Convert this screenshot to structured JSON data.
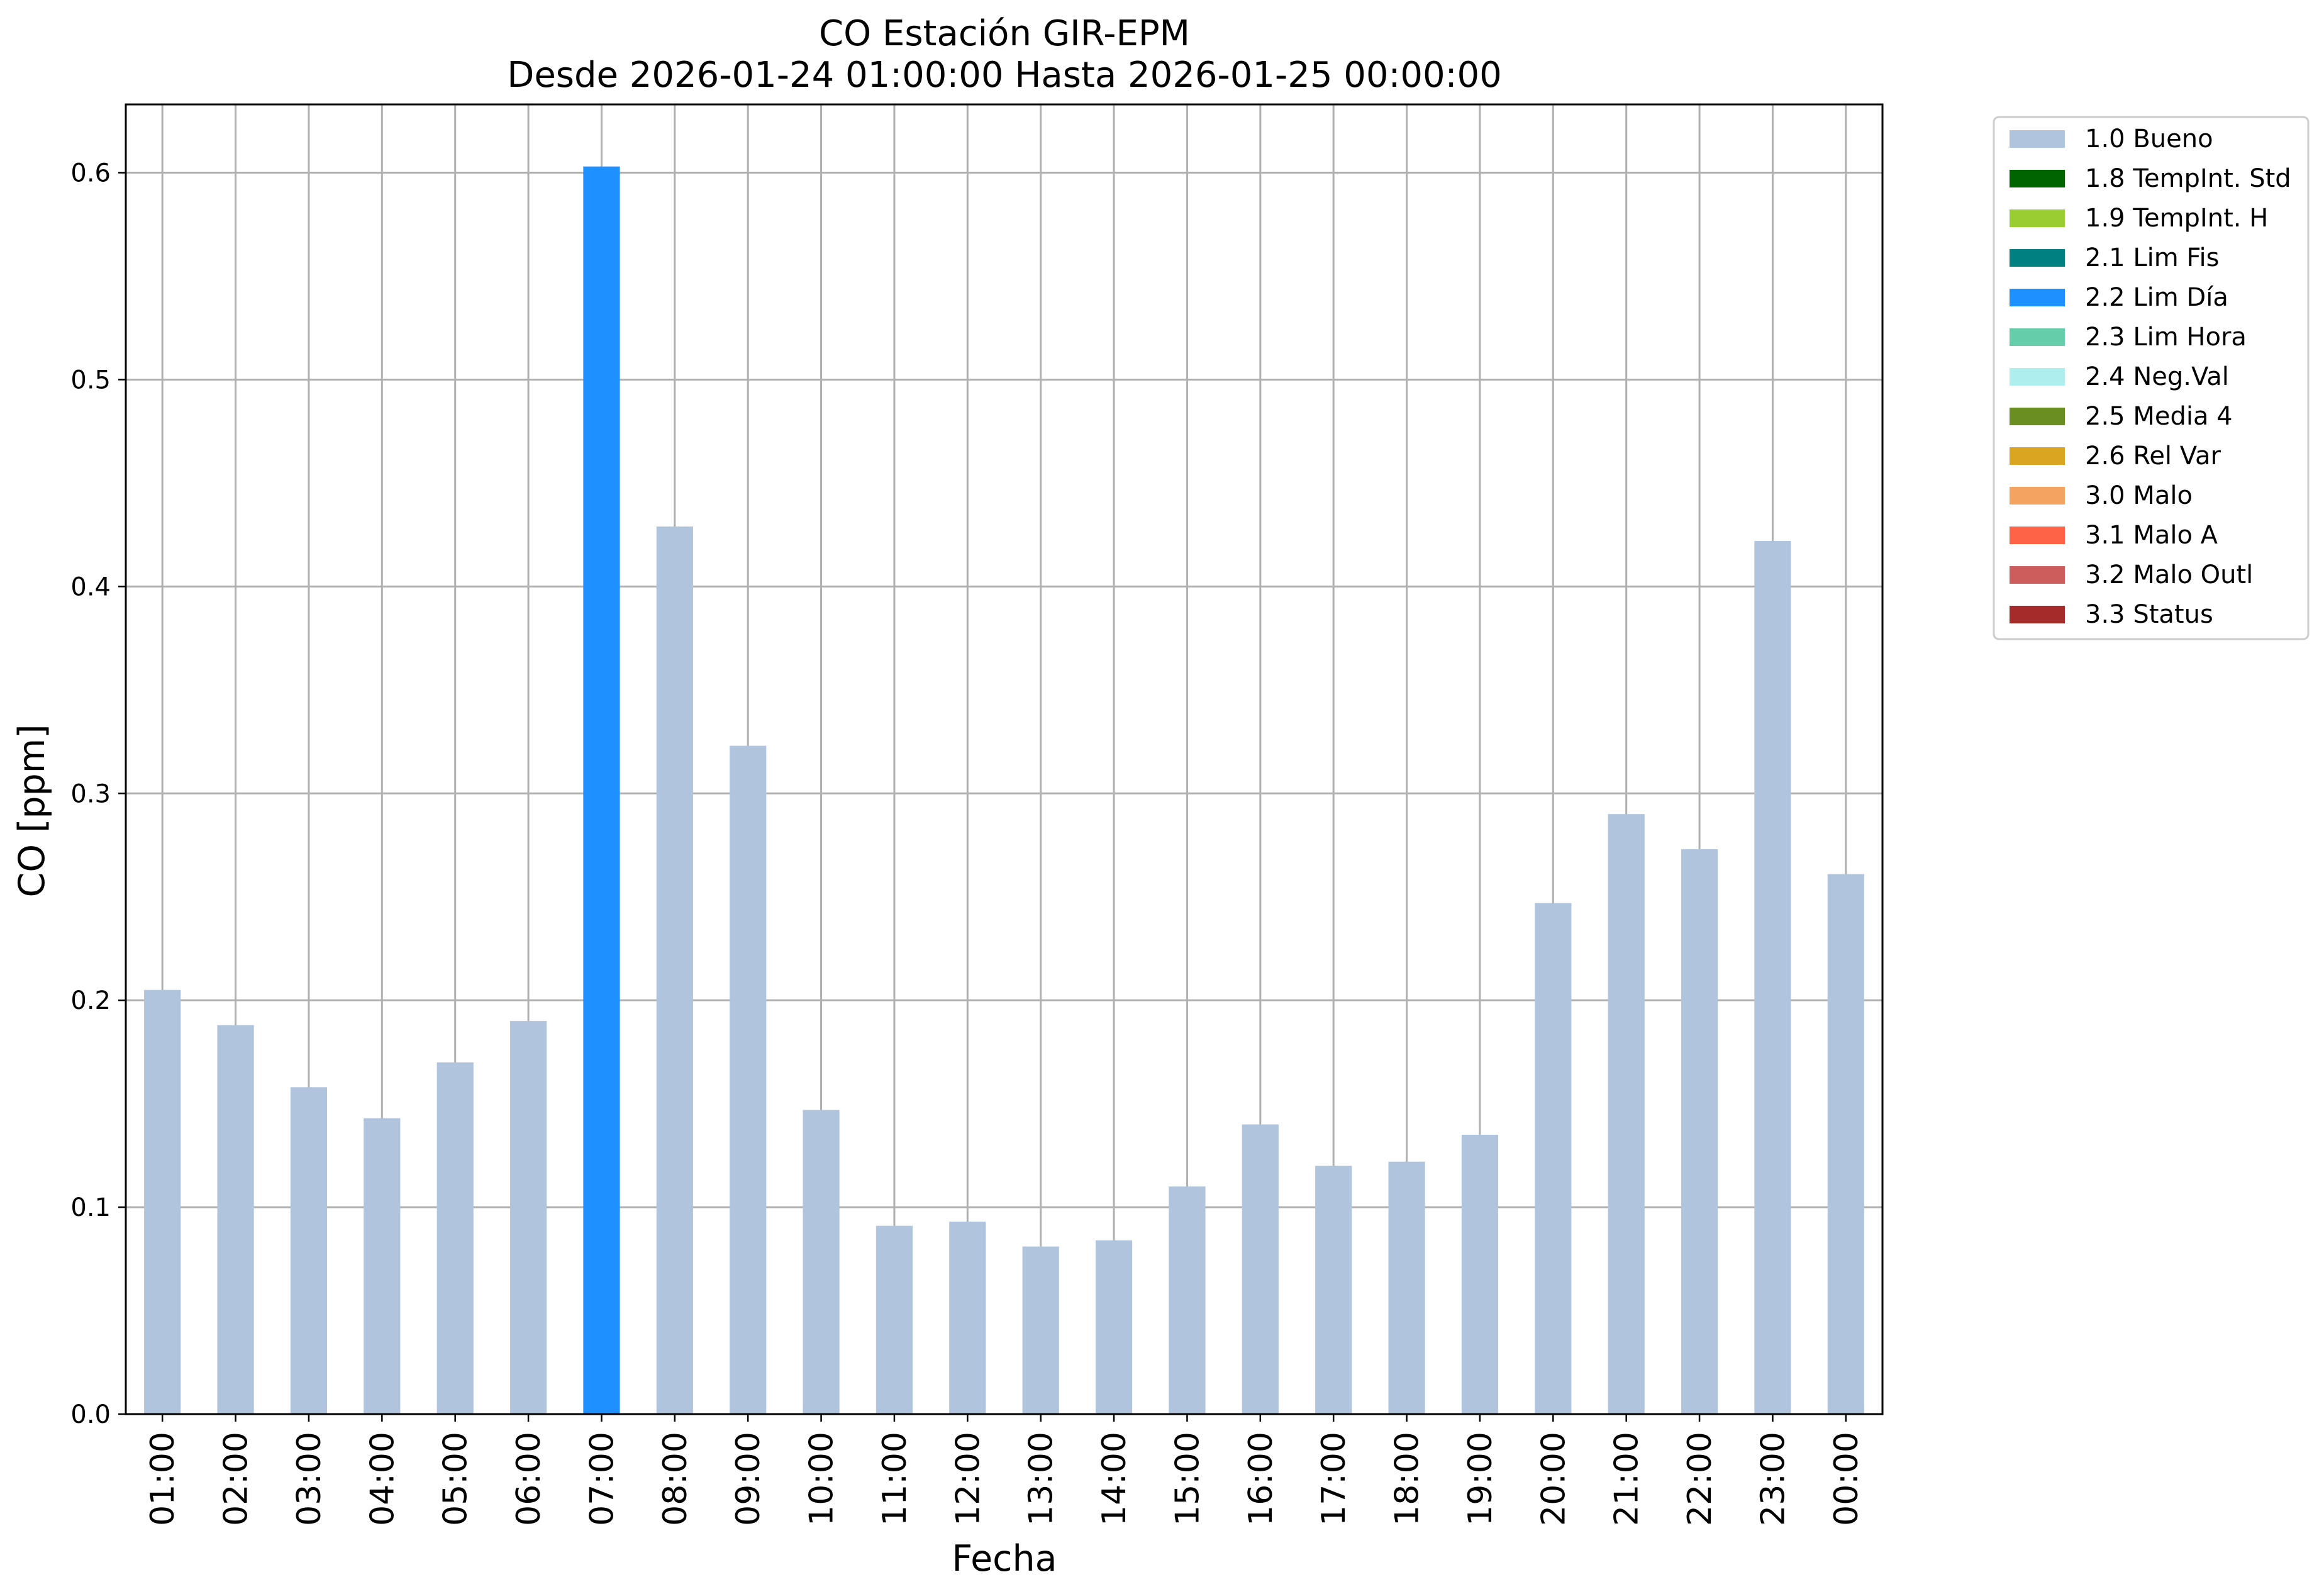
{
  "chart_data": {
    "type": "bar",
    "title": "CO Estación GIR-EPM",
    "subtitle": "Desde 2026-01-24 01:00:00 Hasta 2026-01-25 00:00:00",
    "xlabel": "Fecha",
    "ylabel": "CO [ppm]",
    "ylim": [
      0,
      0.633
    ],
    "yticks": [
      "0.0",
      "0.1",
      "0.2",
      "0.3",
      "0.4",
      "0.5",
      "0.6"
    ],
    "grid": true,
    "legend_position": "outside-top-right",
    "categories": [
      "01:00",
      "02:00",
      "03:00",
      "04:00",
      "05:00",
      "06:00",
      "07:00",
      "08:00",
      "09:00",
      "10:00",
      "11:00",
      "12:00",
      "13:00",
      "14:00",
      "15:00",
      "16:00",
      "17:00",
      "18:00",
      "19:00",
      "20:00",
      "21:00",
      "22:00",
      "23:00",
      "00:00"
    ],
    "values": [
      0.205,
      0.188,
      0.158,
      0.143,
      0.17,
      0.19,
      0.603,
      0.429,
      0.323,
      0.147,
      0.091,
      0.093,
      0.081,
      0.084,
      0.11,
      0.14,
      0.12,
      0.122,
      0.135,
      0.247,
      0.29,
      0.273,
      0.422,
      0.261
    ],
    "bar_flags": [
      "1.0 Bueno",
      "1.0 Bueno",
      "1.0 Bueno",
      "1.0 Bueno",
      "1.0 Bueno",
      "1.0 Bueno",
      "2.2 Lim Día",
      "1.0 Bueno",
      "1.0 Bueno",
      "1.0 Bueno",
      "1.0 Bueno",
      "1.0 Bueno",
      "1.0 Bueno",
      "1.0 Bueno",
      "1.0 Bueno",
      "1.0 Bueno",
      "1.0 Bueno",
      "1.0 Bueno",
      "1.0 Bueno",
      "1.0 Bueno",
      "1.0 Bueno",
      "1.0 Bueno",
      "1.0 Bueno",
      "1.0 Bueno"
    ],
    "legend": [
      {
        "label": "1.0 Bueno",
        "color": "#b0c4de"
      },
      {
        "label": "1.8 TempInt. Std",
        "color": "#006400"
      },
      {
        "label": "1.9 TempInt. H",
        "color": "#9acd32"
      },
      {
        "label": "2.1 Lim Fis",
        "color": "#008080"
      },
      {
        "label": "2.2 Lim Día",
        "color": "#1e90ff"
      },
      {
        "label": "2.3 Lim Hora",
        "color": "#66cdaa"
      },
      {
        "label": "2.4 Neg.Val",
        "color": "#afeeee"
      },
      {
        "label": "2.5 Media 4",
        "color": "#6b8e23"
      },
      {
        "label": "2.6 Rel Var",
        "color": "#daa520"
      },
      {
        "label": "3.0 Malo",
        "color": "#f4a460"
      },
      {
        "label": "3.1 Malo A",
        "color": "#ff6347"
      },
      {
        "label": "3.2 Malo Outl",
        "color": "#cd5c5c"
      },
      {
        "label": "3.3 Status",
        "color": "#a52a2a"
      }
    ]
  }
}
